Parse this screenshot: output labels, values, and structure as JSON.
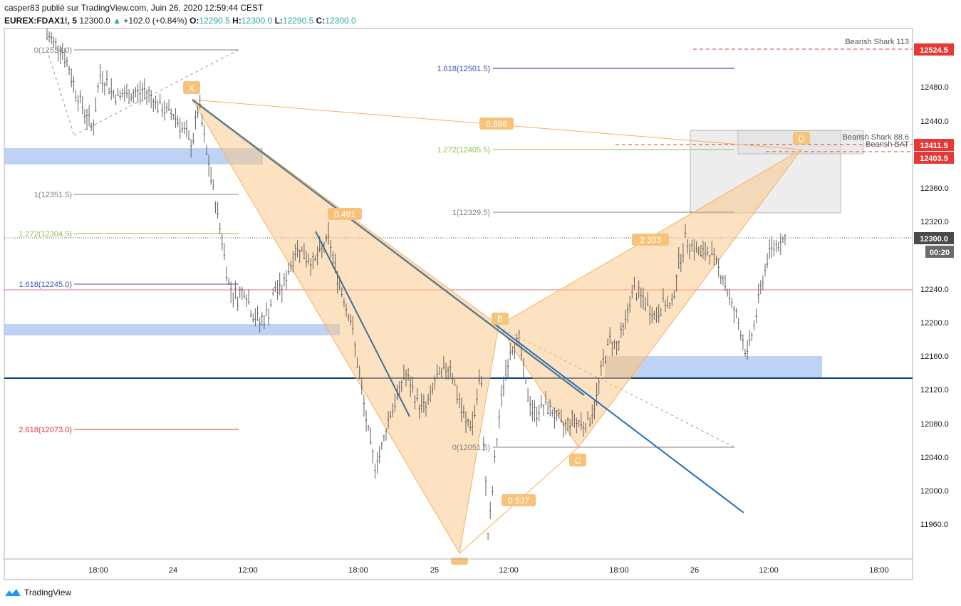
{
  "header": {
    "line1": "casper83 publié sur TradingView.com, Juin 26, 2020 12:59:44 CEST",
    "symbol": "EUREX:FDAX1!, 5",
    "last": "12300.0",
    "change": "+102.0 (+0.84%)",
    "o_label": "O:",
    "o": "12290.5",
    "h_label": "H:",
    "h": "12300.0",
    "l_label": "L:",
    "l": "12290.5",
    "c_label": "C:",
    "c": "12300.0"
  },
  "footer": {
    "brand": "TradingView"
  },
  "colors": {
    "pattern_fill": "#f9c584",
    "pattern_label": "#f7c27a",
    "trend_blue": "#1e6fc2",
    "trend_gray": "#607d8b",
    "zone_blue": "#b3cbf2",
    "support_line": "#0d3f7a",
    "price_red": "#e53935",
    "candles": "#606060"
  },
  "chart_data": {
    "type": "candlestick",
    "y_axis_labels": [
      "12524.5",
      "12480.0",
      "12440.0",
      "12411.5",
      "12403.5",
      "12360.0",
      "12320.0",
      "12300.0",
      "12240.0",
      "12200.0",
      "12160.0",
      "12120.0",
      "12080.0",
      "12040.0",
      "12000.0",
      "11960.0"
    ],
    "x_axis_labels": [
      "18:00",
      "24",
      "12:00",
      "18:00",
      "25",
      "12:00",
      "18:00",
      "26",
      "12:00",
      "18:00"
    ],
    "current_price": "12300.0",
    "countdown": "00:20",
    "price_tags": [
      {
        "value": "12524.5",
        "color": "#e53935"
      },
      {
        "value": "12411.5",
        "color": "#e53935"
      },
      {
        "value": "12403.5",
        "color": "#e53935"
      },
      {
        "value": "12300.0",
        "color": "#4a4a4a"
      }
    ],
    "fib_labels": [
      {
        "text": "0(12524.0)",
        "color": "#808080"
      },
      {
        "text": "1(12351.5)",
        "color": "#808080"
      },
      {
        "text": "1.272(12304.5)",
        "color": "#8bc34a"
      },
      {
        "text": "1.618(12245.0)",
        "color": "#3f51b5"
      },
      {
        "text": "2.618(12073.0)",
        "color": "#e53935"
      },
      {
        "text": "1.618(12501.5)",
        "color": "#3f51b5"
      },
      {
        "text": "1.272(12405.5)",
        "color": "#8bc34a"
      },
      {
        "text": "1(12329.5)",
        "color": "#808080"
      },
      {
        "text": "0(12051.5)",
        "color": "#808080"
      }
    ],
    "harmonic_points": [
      "X",
      "B",
      "C",
      "D"
    ],
    "ratio_labels": [
      "0.886",
      "0.491",
      "0.537",
      "2.303"
    ],
    "annotations": [
      "Bearish Shark 113",
      "Bearish Shark 88.6",
      "Bearish BAT"
    ],
    "ohlc_path": [
      [
        0,
        12540
      ],
      [
        18,
        12525
      ],
      [
        36,
        12470
      ],
      [
        54,
        12430
      ],
      [
        63,
        12495
      ],
      [
        81,
        12470
      ],
      [
        99,
        12470
      ],
      [
        117,
        12475
      ],
      [
        135,
        12455
      ],
      [
        153,
        12445
      ],
      [
        171,
        12410
      ],
      [
        180,
        12460
      ],
      [
        189,
        12400
      ],
      [
        198,
        12350
      ],
      [
        207,
        12300
      ],
      [
        216,
        12240
      ],
      [
        225,
        12230
      ],
      [
        234,
        12240
      ],
      [
        243,
        12210
      ],
      [
        252,
        12200
      ],
      [
        261,
        12210
      ],
      [
        270,
        12240
      ],
      [
        279,
        12240
      ],
      [
        288,
        12270
      ],
      [
        297,
        12290
      ],
      [
        306,
        12280
      ],
      [
        315,
        12270
      ],
      [
        324,
        12285
      ],
      [
        333,
        12300
      ],
      [
        342,
        12260
      ],
      [
        351,
        12230
      ],
      [
        360,
        12200
      ],
      [
        369,
        12140
      ],
      [
        378,
        12080
      ],
      [
        387,
        12030
      ],
      [
        396,
        12050
      ],
      [
        405,
        12090
      ],
      [
        414,
        12110
      ],
      [
        423,
        12140
      ],
      [
        432,
        12120
      ],
      [
        441,
        12100
      ],
      [
        450,
        12100
      ],
      [
        459,
        12130
      ],
      [
        468,
        12140
      ],
      [
        477,
        12150
      ],
      [
        486,
        12110
      ],
      [
        495,
        12080
      ],
      [
        504,
        12080
      ],
      [
        513,
        12140
      ],
      [
        522,
        11940
      ],
      [
        531,
        12050
      ],
      [
        540,
        12130
      ],
      [
        549,
        12170
      ],
      [
        558,
        12180
      ],
      [
        567,
        12120
      ],
      [
        576,
        12090
      ],
      [
        585,
        12100
      ],
      [
        594,
        12100
      ],
      [
        603,
        12085
      ],
      [
        612,
        12075
      ],
      [
        621,
        12085
      ],
      [
        630,
        12080
      ],
      [
        639,
        12080
      ],
      [
        648,
        12100
      ],
      [
        657,
        12150
      ],
      [
        666,
        12180
      ],
      [
        675,
        12170
      ],
      [
        684,
        12200
      ],
      [
        693,
        12240
      ],
      [
        702,
        12230
      ],
      [
        711,
        12220
      ],
      [
        720,
        12205
      ],
      [
        729,
        12225
      ],
      [
        738,
        12215
      ],
      [
        747,
        12270
      ],
      [
        756,
        12300
      ],
      [
        765,
        12290
      ],
      [
        774,
        12280
      ],
      [
        783,
        12285
      ],
      [
        792,
        12270
      ],
      [
        801,
        12250
      ],
      [
        810,
        12220
      ],
      [
        819,
        12195
      ],
      [
        828,
        12160
      ],
      [
        837,
        12200
      ],
      [
        846,
        12250
      ],
      [
        855,
        12285
      ],
      [
        864,
        12295
      ],
      [
        873,
        12300
      ]
    ]
  }
}
